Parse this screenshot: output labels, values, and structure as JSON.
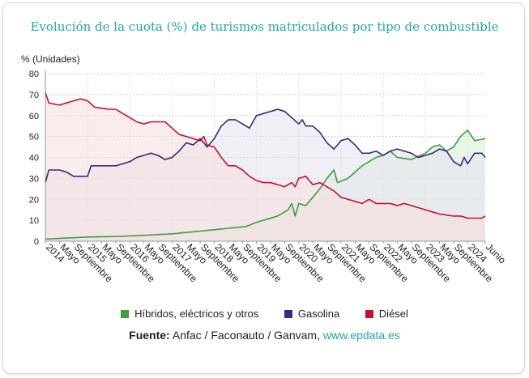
{
  "title": "Evolución de la cuota (%) de turismos matriculados por tipo de combustible",
  "source": {
    "label": "Fuente:",
    "text": "Anfac / Faconauto / Ganvam,",
    "link": "www.epdata.es"
  },
  "chart_data": {
    "type": "area",
    "ylabel": "% (Unidades)",
    "ylim": [
      0,
      80
    ],
    "yticks": [
      0,
      10,
      20,
      30,
      40,
      50,
      60,
      70,
      80
    ],
    "x_start": "2014-01",
    "x_end": "2024-06",
    "x_ticks": [
      {
        "label": "2014",
        "month": 0
      },
      {
        "label": "Mayo",
        "month": 4
      },
      {
        "label": "Septiembre",
        "month": 8
      },
      {
        "label": "2015",
        "month": 12
      },
      {
        "label": "Mayo",
        "month": 16
      },
      {
        "label": "Septiembre",
        "month": 20
      },
      {
        "label": "2016",
        "month": 24
      },
      {
        "label": "Mayo",
        "month": 28
      },
      {
        "label": "Septiembre",
        "month": 32
      },
      {
        "label": "2017",
        "month": 36
      },
      {
        "label": "Mayo",
        "month": 40
      },
      {
        "label": "Septiembre",
        "month": 44
      },
      {
        "label": "2018",
        "month": 48
      },
      {
        "label": "Mayo",
        "month": 52
      },
      {
        "label": "Septiembre",
        "month": 56
      },
      {
        "label": "2019",
        "month": 60
      },
      {
        "label": "Mayo",
        "month": 64
      },
      {
        "label": "Septiembre",
        "month": 68
      },
      {
        "label": "2020",
        "month": 72
      },
      {
        "label": "Mayo",
        "month": 76
      },
      {
        "label": "Septiembre",
        "month": 80
      },
      {
        "label": "2021",
        "month": 84
      },
      {
        "label": "Mayo",
        "month": 88
      },
      {
        "label": "Septiembre",
        "month": 92
      },
      {
        "label": "2022",
        "month": 96
      },
      {
        "label": "Mayo",
        "month": 100
      },
      {
        "label": "Septiembre",
        "month": 104
      },
      {
        "label": "2023",
        "month": 108
      },
      {
        "label": "Mayo",
        "month": 112
      },
      {
        "label": "Septiembre",
        "month": 116
      },
      {
        "label": "2024",
        "month": 120
      },
      {
        "label": "Junio",
        "month": 125
      }
    ],
    "series": [
      {
        "name": "Híbridos, eléctricos y otros",
        "color": "#3f9e3f",
        "fill": "#d9ecd9",
        "keypoints": [
          [
            0,
            1
          ],
          [
            6,
            1.5
          ],
          [
            12,
            2
          ],
          [
            18,
            2.2
          ],
          [
            24,
            2.5
          ],
          [
            30,
            3
          ],
          [
            36,
            3.5
          ],
          [
            42,
            4.5
          ],
          [
            48,
            5.5
          ],
          [
            54,
            6.5
          ],
          [
            57,
            7
          ],
          [
            60,
            9
          ],
          [
            66,
            12
          ],
          [
            69,
            15
          ],
          [
            70,
            18
          ],
          [
            71,
            12
          ],
          [
            72,
            18
          ],
          [
            74,
            17
          ],
          [
            76,
            21
          ],
          [
            78,
            25
          ],
          [
            80,
            30
          ],
          [
            82,
            34
          ],
          [
            83,
            28
          ],
          [
            86,
            30
          ],
          [
            88,
            33
          ],
          [
            90,
            36
          ],
          [
            92,
            38
          ],
          [
            94,
            40
          ],
          [
            96,
            41
          ],
          [
            98,
            43
          ],
          [
            100,
            40
          ],
          [
            104,
            39
          ],
          [
            108,
            42
          ],
          [
            110,
            45
          ],
          [
            112,
            46
          ],
          [
            114,
            43
          ],
          [
            116,
            45
          ],
          [
            118,
            50
          ],
          [
            120,
            53
          ],
          [
            122,
            48
          ],
          [
            125,
            49
          ]
        ]
      },
      {
        "name": "Gasolina",
        "color": "#3a2a7a",
        "fill": "#e4e2ee",
        "keypoints": [
          [
            0,
            28
          ],
          [
            1,
            34
          ],
          [
            4,
            34
          ],
          [
            6,
            33
          ],
          [
            8,
            31
          ],
          [
            10,
            31
          ],
          [
            12,
            31
          ],
          [
            13,
            36
          ],
          [
            16,
            36
          ],
          [
            20,
            36
          ],
          [
            24,
            38
          ],
          [
            26,
            40
          ],
          [
            30,
            42
          ],
          [
            32,
            41
          ],
          [
            34,
            39
          ],
          [
            36,
            40
          ],
          [
            38,
            43
          ],
          [
            40,
            47
          ],
          [
            42,
            46
          ],
          [
            44,
            49
          ],
          [
            46,
            45
          ],
          [
            48,
            49
          ],
          [
            50,
            55
          ],
          [
            52,
            58
          ],
          [
            54,
            58
          ],
          [
            56,
            56
          ],
          [
            58,
            54
          ],
          [
            60,
            60
          ],
          [
            62,
            61
          ],
          [
            64,
            62
          ],
          [
            66,
            63
          ],
          [
            68,
            62
          ],
          [
            70,
            59
          ],
          [
            72,
            56
          ],
          [
            73,
            58
          ],
          [
            74,
            55
          ],
          [
            76,
            55
          ],
          [
            78,
            52
          ],
          [
            80,
            47
          ],
          [
            82,
            44
          ],
          [
            84,
            48
          ],
          [
            86,
            49
          ],
          [
            88,
            46
          ],
          [
            90,
            42
          ],
          [
            92,
            42
          ],
          [
            94,
            43
          ],
          [
            96,
            41
          ],
          [
            98,
            43
          ],
          [
            100,
            44
          ],
          [
            104,
            42
          ],
          [
            106,
            40
          ],
          [
            108,
            41
          ],
          [
            110,
            42
          ],
          [
            112,
            44
          ],
          [
            114,
            43
          ],
          [
            116,
            38
          ],
          [
            118,
            36
          ],
          [
            119,
            40
          ],
          [
            120,
            37
          ],
          [
            122,
            42
          ],
          [
            124,
            42
          ],
          [
            125,
            40
          ]
        ]
      },
      {
        "name": "Diésel",
        "color": "#c8102e",
        "fill": "#f6dcdc",
        "keypoints": [
          [
            0,
            71
          ],
          [
            1,
            66
          ],
          [
            4,
            65
          ],
          [
            6,
            66
          ],
          [
            8,
            67
          ],
          [
            10,
            68
          ],
          [
            12,
            67
          ],
          [
            14,
            64
          ],
          [
            18,
            63
          ],
          [
            20,
            63
          ],
          [
            22,
            61
          ],
          [
            24,
            59
          ],
          [
            26,
            57
          ],
          [
            28,
            56
          ],
          [
            30,
            57
          ],
          [
            32,
            57
          ],
          [
            34,
            57
          ],
          [
            36,
            54
          ],
          [
            38,
            51
          ],
          [
            40,
            50
          ],
          [
            42,
            49
          ],
          [
            44,
            48
          ],
          [
            45,
            50
          ],
          [
            46,
            46
          ],
          [
            48,
            45
          ],
          [
            50,
            40
          ],
          [
            52,
            36
          ],
          [
            54,
            36
          ],
          [
            56,
            34
          ],
          [
            58,
            31
          ],
          [
            60,
            29
          ],
          [
            62,
            28
          ],
          [
            64,
            28
          ],
          [
            66,
            27
          ],
          [
            68,
            26
          ],
          [
            70,
            28
          ],
          [
            71,
            26
          ],
          [
            72,
            30
          ],
          [
            74,
            31
          ],
          [
            76,
            27
          ],
          [
            78,
            28
          ],
          [
            80,
            26
          ],
          [
            82,
            24
          ],
          [
            84,
            21
          ],
          [
            86,
            20
          ],
          [
            88,
            19
          ],
          [
            90,
            18
          ],
          [
            92,
            20
          ],
          [
            94,
            18
          ],
          [
            96,
            18
          ],
          [
            98,
            18
          ],
          [
            100,
            17
          ],
          [
            102,
            18
          ],
          [
            104,
            17
          ],
          [
            106,
            16
          ],
          [
            108,
            15
          ],
          [
            110,
            14
          ],
          [
            112,
            13
          ],
          [
            116,
            12
          ],
          [
            118,
            12
          ],
          [
            120,
            11
          ],
          [
            122,
            11
          ],
          [
            124,
            11
          ],
          [
            125,
            12
          ]
        ]
      }
    ]
  }
}
